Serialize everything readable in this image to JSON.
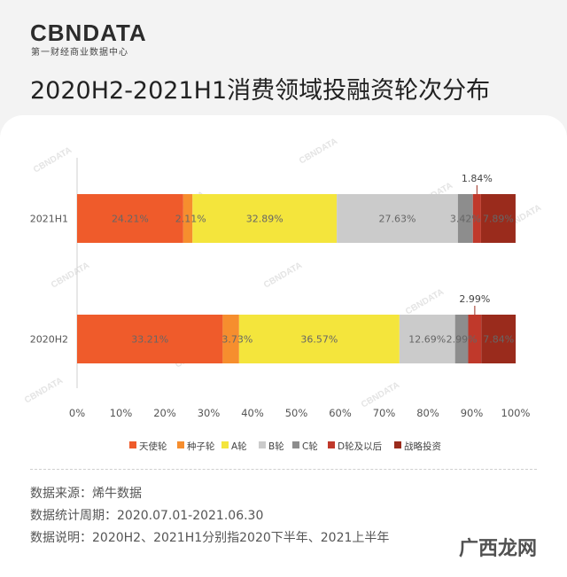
{
  "header": {
    "logo": "CBNDATA",
    "logo_sub": "第一财经商业数据中心",
    "title": "2020H2-2021H1消费领域投融资轮次分布"
  },
  "colors": {
    "background": "#f3f3f3",
    "card": "#ffffff",
    "series": [
      "#ef5b2b",
      "#f68e2e",
      "#f4e53c",
      "#cbcbcb",
      "#8d8d8d",
      "#c0392b",
      "#9a2b1c"
    ]
  },
  "chart_data": {
    "type": "bar",
    "orientation": "horizontal",
    "stacked": true,
    "categories": [
      "2021H1",
      "2020H2"
    ],
    "series": [
      {
        "name": "天使轮",
        "values": [
          24.21,
          33.21
        ]
      },
      {
        "name": "种子轮",
        "values": [
          2.11,
          3.73
        ]
      },
      {
        "name": "A轮",
        "values": [
          32.89,
          36.57
        ]
      },
      {
        "name": "B轮",
        "values": [
          27.63,
          12.69
        ]
      },
      {
        "name": "C轮",
        "values": [
          3.42,
          2.99
        ]
      },
      {
        "name": "D轮及以后",
        "values": [
          1.84,
          2.99
        ]
      },
      {
        "name": "战略投资",
        "values": [
          7.89,
          7.84
        ]
      }
    ],
    "data_labels": [
      [
        "24.21%",
        "2.11%",
        "32.89%",
        "27.63%",
        "3.42%",
        "1.84%",
        "7.89%"
      ],
      [
        "33.21%",
        "3.73%",
        "36.57%",
        "12.69%",
        "2.99%",
        "2.99%",
        "7.84%"
      ]
    ],
    "xticks": [
      "0%",
      "10%",
      "20%",
      "30%",
      "40%",
      "50%",
      "60%",
      "70%",
      "80%",
      "90%",
      "100%"
    ],
    "xlim": [
      0,
      100
    ],
    "legend_position": "bottom",
    "grid": false
  },
  "footer": {
    "source": "数据来源：烯牛数据",
    "period": "数据统计周期：2020.07.01-2021.06.30",
    "note": "数据说明：2020H2、2021H1分别指2020下半年、2021上半年"
  },
  "watermark": "广西龙网",
  "background_watermark": "CBNDATA"
}
